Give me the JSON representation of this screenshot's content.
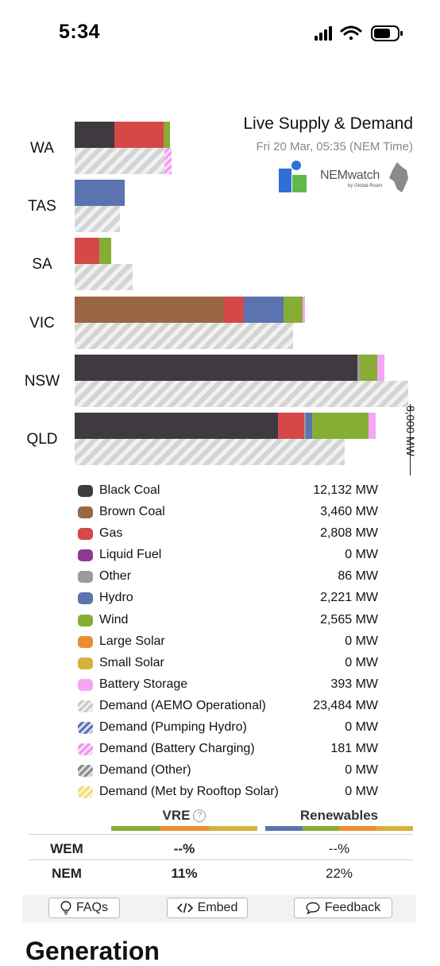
{
  "status_bar": {
    "time": "5:34",
    "icons": [
      "cellular-signal-icon",
      "wifi-icon",
      "battery-icon"
    ]
  },
  "header": {
    "title": "Live Supply & Demand",
    "subtitle": "Fri 20 Mar, 05:35 (NEM Time)",
    "logo_text": "NEMwatch",
    "logo_sub": "by Global-Roam"
  },
  "chart_data": {
    "type": "bar",
    "orientation": "horizontal-stacked",
    "axis_max_label": "8,000 MW",
    "xlim": [
      0,
      8000
    ],
    "categories": [
      "WA",
      "TAS",
      "SA",
      "VIC",
      "NSW",
      "QLD"
    ],
    "supply_series": [
      {
        "name": "Black Coal",
        "color": "#3f3a40",
        "values": [
          950,
          0,
          0,
          0,
          6750,
          4850
        ]
      },
      {
        "name": "Brown Coal",
        "color": "#9b6644",
        "values": [
          0,
          0,
          0,
          3560,
          0,
          0
        ]
      },
      {
        "name": "Gas",
        "color": "#d44848",
        "values": [
          1180,
          0,
          580,
          480,
          0,
          620
        ]
      },
      {
        "name": "Other",
        "color": "#9b9b9b",
        "values": [
          0,
          0,
          0,
          0,
          50,
          40
        ]
      },
      {
        "name": "Hydro",
        "color": "#5b74b0",
        "values": [
          0,
          1200,
          0,
          950,
          0,
          160
        ]
      },
      {
        "name": "Wind",
        "color": "#86ad34",
        "values": [
          140,
          0,
          300,
          450,
          420,
          1340
        ]
      },
      {
        "name": "Battery Storage",
        "color": "#f4a6f4",
        "values": [
          0,
          0,
          0,
          60,
          170,
          180
        ]
      }
    ],
    "demand_series": [
      {
        "name": "Demand (AEMO Operational)",
        "values": [
          2140,
          1080,
          1390,
          5220,
          7960,
          6440
        ]
      },
      {
        "name": "Demand (Battery Charging)",
        "values": [
          170,
          0,
          0,
          0,
          0,
          0
        ]
      }
    ]
  },
  "legend": [
    {
      "name": "Black Coal",
      "value": "12,132 MW",
      "swatch": "#3f3a40",
      "icon": "black-coal-swatch-icon"
    },
    {
      "name": "Brown Coal",
      "value": "3,460 MW",
      "swatch": "#9b6644",
      "icon": "brown-coal-swatch-icon"
    },
    {
      "name": "Gas",
      "value": "2,808 MW",
      "swatch": "#d44848",
      "icon": "gas-swatch-icon"
    },
    {
      "name": "Liquid Fuel",
      "value": "0 MW",
      "swatch": "#8a3a8f",
      "icon": "liquid-fuel-swatch-icon"
    },
    {
      "name": "Other",
      "value": "86 MW",
      "swatch": "#9b9b9b",
      "icon": "other-swatch-icon"
    },
    {
      "name": "Hydro",
      "value": "2,221 MW",
      "swatch": "#5b74b0",
      "icon": "hydro-swatch-icon"
    },
    {
      "name": "Wind",
      "value": "2,565 MW",
      "swatch": "#86ad34",
      "icon": "wind-swatch-icon"
    },
    {
      "name": "Large Solar",
      "value": "0 MW",
      "swatch": "#ed8c35",
      "icon": "large-solar-swatch-icon"
    },
    {
      "name": "Small Solar",
      "value": "0 MW",
      "swatch": "#d6b13a",
      "icon": "small-solar-swatch-icon"
    },
    {
      "name": "Battery Storage",
      "value": "393 MW",
      "swatch": "#f4a6f4",
      "icon": "battery-storage-swatch-icon"
    },
    {
      "name": "Demand (AEMO Operational)",
      "value": "23,484 MW",
      "swatch": "hatch",
      "icon": "demand-operational-swatch-icon"
    },
    {
      "name": "Demand (Pumping Hydro)",
      "value": "0 MW",
      "swatch": "hatch-hydro",
      "icon": "demand-pumping-hydro-swatch-icon"
    },
    {
      "name": "Demand (Battery Charging)",
      "value": "181 MW",
      "swatch": "hatch-batt",
      "icon": "demand-battery-charging-swatch-icon"
    },
    {
      "name": "Demand (Other)",
      "value": "0 MW",
      "swatch": "hatch-other",
      "icon": "demand-other-swatch-icon"
    },
    {
      "name": "Demand (Met by Rooftop Solar)",
      "value": "0 MW",
      "swatch": "hatch-rooftop",
      "icon": "demand-rooftop-solar-swatch-icon"
    }
  ],
  "percent_table": {
    "vre_label": "VRE",
    "renewables_label": "Renewables",
    "help_symbol": "?",
    "vre_colors": [
      "#86ad34",
      "#ed8c35",
      "#d6b13a"
    ],
    "renewables_colors": [
      "#5b74b0",
      "#86ad34",
      "#ed8c35",
      "#d6b13a"
    ],
    "rows": [
      {
        "label": "WEM",
        "vre": "--%",
        "renewables": "--%"
      },
      {
        "label": "NEM",
        "vre": "11%",
        "renewables": "22%"
      }
    ]
  },
  "actions": {
    "faqs": "FAQs",
    "embed": "Embed",
    "feedback": "Feedback"
  },
  "next_section": {
    "heading": "Generation"
  }
}
